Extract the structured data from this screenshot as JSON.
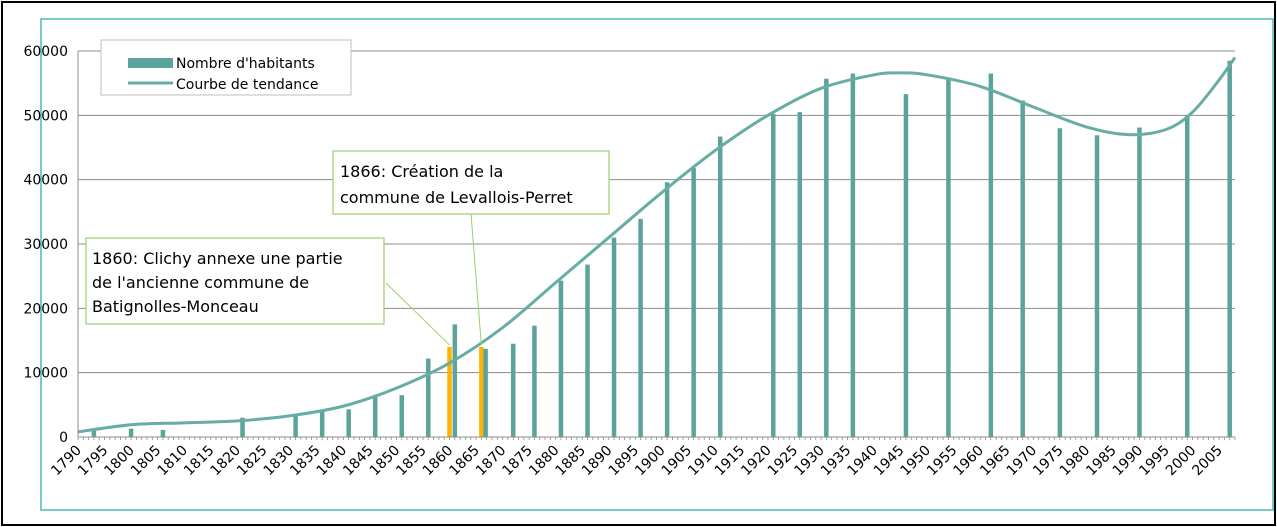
{
  "chart_data": {
    "type": "bar",
    "title": "",
    "xlabel": "",
    "ylabel": "",
    "xlim": [
      1790,
      2008
    ],
    "ylim": [
      0,
      60000
    ],
    "y_ticks": [
      0,
      10000,
      20000,
      30000,
      40000,
      50000,
      60000
    ],
    "x_ticks": [
      1790,
      1795,
      1800,
      1805,
      1810,
      1815,
      1820,
      1825,
      1830,
      1835,
      1840,
      1845,
      1850,
      1855,
      1860,
      1865,
      1870,
      1875,
      1880,
      1885,
      1890,
      1895,
      1900,
      1905,
      1910,
      1915,
      1920,
      1925,
      1930,
      1935,
      1940,
      1945,
      1950,
      1955,
      1960,
      1965,
      1970,
      1975,
      1980,
      1985,
      1990,
      1995,
      2000,
      2005
    ],
    "grid": true,
    "legend_position": "top-left",
    "colors": {
      "bar": "#5ba39c",
      "highlight": "#ffb300",
      "trend": "#67aca5",
      "plot_border": "#4fb5b5",
      "annotation_border": "#9bcf6a"
    },
    "series": [
      {
        "name": "Nombre d'habitants",
        "kind": "bar",
        "points": [
          {
            "x": 1793,
            "y": 1000
          },
          {
            "x": 1800,
            "y": 1300
          },
          {
            "x": 1806,
            "y": 1100
          },
          {
            "x": 1821,
            "y": 3000
          },
          {
            "x": 1831,
            "y": 3300
          },
          {
            "x": 1836,
            "y": 4200
          },
          {
            "x": 1841,
            "y": 4300
          },
          {
            "x": 1846,
            "y": 6500
          },
          {
            "x": 1851,
            "y": 6500
          },
          {
            "x": 1856,
            "y": 12200
          },
          {
            "x": 1860,
            "y": 14000,
            "highlight": true
          },
          {
            "x": 1861,
            "y": 17500
          },
          {
            "x": 1866,
            "y": 14000,
            "highlight": true
          },
          {
            "x": 1866.8,
            "y": 13700
          },
          {
            "x": 1872,
            "y": 14500
          },
          {
            "x": 1876,
            "y": 17300
          },
          {
            "x": 1881,
            "y": 24300
          },
          {
            "x": 1886,
            "y": 26800
          },
          {
            "x": 1891,
            "y": 31000
          },
          {
            "x": 1896,
            "y": 33900
          },
          {
            "x": 1901,
            "y": 39600
          },
          {
            "x": 1906,
            "y": 41800
          },
          {
            "x": 1911,
            "y": 46700
          },
          {
            "x": 1921,
            "y": 50200
          },
          {
            "x": 1926,
            "y": 50500
          },
          {
            "x": 1931,
            "y": 55700
          },
          {
            "x": 1936,
            "y": 56500
          },
          {
            "x": 1946,
            "y": 53300
          },
          {
            "x": 1954,
            "y": 55700
          },
          {
            "x": 1962,
            "y": 56500
          },
          {
            "x": 1968,
            "y": 52300
          },
          {
            "x": 1975,
            "y": 48000
          },
          {
            "x": 1982,
            "y": 46900
          },
          {
            "x": 1990,
            "y": 48100
          },
          {
            "x": 1999,
            "y": 50000
          },
          {
            "x": 2007,
            "y": 58500
          }
        ]
      },
      {
        "name": "Courbe de tendance",
        "kind": "line",
        "points": [
          {
            "x": 1790,
            "y": 800
          },
          {
            "x": 1800,
            "y": 1900
          },
          {
            "x": 1810,
            "y": 2200
          },
          {
            "x": 1820,
            "y": 2500
          },
          {
            "x": 1830,
            "y": 3300
          },
          {
            "x": 1840,
            "y": 4800
          },
          {
            "x": 1850,
            "y": 7600
          },
          {
            "x": 1860,
            "y": 11500
          },
          {
            "x": 1870,
            "y": 17000
          },
          {
            "x": 1880,
            "y": 24000
          },
          {
            "x": 1890,
            "y": 31000
          },
          {
            "x": 1900,
            "y": 38000
          },
          {
            "x": 1910,
            "y": 44500
          },
          {
            "x": 1920,
            "y": 50000
          },
          {
            "x": 1930,
            "y": 54200
          },
          {
            "x": 1940,
            "y": 56300
          },
          {
            "x": 1945,
            "y": 56600
          },
          {
            "x": 1950,
            "y": 56300
          },
          {
            "x": 1960,
            "y": 54500
          },
          {
            "x": 1970,
            "y": 51300
          },
          {
            "x": 1980,
            "y": 48200
          },
          {
            "x": 1988,
            "y": 47000
          },
          {
            "x": 1995,
            "y": 47800
          },
          {
            "x": 2000,
            "y": 50500
          },
          {
            "x": 2005,
            "y": 55500
          },
          {
            "x": 2008,
            "y": 59000
          }
        ]
      }
    ],
    "annotations": [
      {
        "lines": [
          "1866: Création de la",
          "commune de Levallois-Perret"
        ],
        "target": {
          "x": 1866,
          "y": 14000
        }
      },
      {
        "lines": [
          "1860: Clichy annexe une partie",
          "de l'ancienne commune de",
          "Batignolles-Monceau"
        ],
        "target": {
          "x": 1860,
          "y": 14000
        }
      }
    ]
  }
}
